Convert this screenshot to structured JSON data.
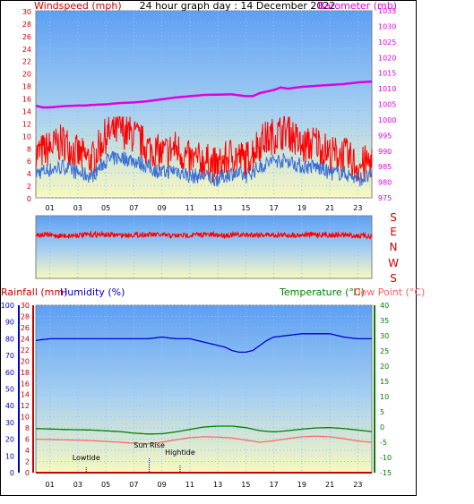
{
  "header": {
    "left_title": "Windspeed (mph)",
    "center_title": "24 hour graph day : 14 December 2022",
    "right_title": "Barometer (mb)"
  },
  "compass_labels": [
    "S",
    "E",
    "N",
    "W",
    "S"
  ],
  "bottom_header": {
    "rain_label": "Rainfall (mm)",
    "humidity_label": "Humidity (%)",
    "temp_label": "Temperature (°C)",
    "dew_label": "Dew Point (°C)"
  },
  "annotations": {
    "lowtide": "Lowtide",
    "sunrise": "Sun Rise",
    "hightide": "Hightide"
  },
  "colors": {
    "wind_gust": "#ff0000",
    "wind_avg": "#3a6fd6",
    "barometer": "#e000e0",
    "wind_dir": "#ff0000",
    "humidity": "#0000cc",
    "temperature": "#008000",
    "dewpoint": "#ff6060",
    "rain_axis": "#cc0000",
    "sky_top": "#5d9ff4",
    "sky_bottom": "#f8f8c0",
    "grid": "#8fc0ff"
  },
  "chart_data": [
    {
      "type": "line",
      "title": "24 hour graph day : 14 December 2022",
      "x_ticks": [
        "01",
        "03",
        "05",
        "07",
        "09",
        "11",
        "13",
        "15",
        "17",
        "19",
        "21",
        "23"
      ],
      "xlim": [
        0,
        24
      ],
      "y_left": {
        "label": "Windspeed (mph)",
        "range": [
          0,
          30
        ],
        "ticks": [
          "0",
          "2",
          "4",
          "6",
          "8",
          "10",
          "12",
          "14",
          "16",
          "18",
          "20",
          "22",
          "24",
          "26",
          "28",
          "30"
        ]
      },
      "y_right": {
        "label": "Barometer (mb)",
        "range": [
          975,
          1035
        ],
        "ticks": [
          "975",
          "980",
          "985",
          "990",
          "995",
          "1000",
          "1005",
          "1010",
          "1015",
          "1020",
          "1025",
          "1030",
          "1035"
        ]
      },
      "series": [
        {
          "name": "Barometer (mb)",
          "axis": "right",
          "x": [
            0,
            0.5,
            1,
            1.5,
            2,
            2.5,
            3,
            3.5,
            4,
            5,
            6,
            7,
            8,
            9,
            10,
            11,
            12,
            13,
            14,
            15,
            15.5,
            16,
            17,
            17.5,
            18,
            19,
            20,
            21,
            22,
            23,
            24
          ],
          "values": [
            1004.5,
            1004,
            1004,
            1004.2,
            1004.4,
            1004.5,
            1004.6,
            1004.6,
            1004.8,
            1005,
            1005.4,
            1005.6,
            1006,
            1006.6,
            1007.2,
            1007.6,
            1008,
            1008.1,
            1008.2,
            1007.6,
            1007.6,
            1008.6,
            1009.6,
            1010.4,
            1010,
            1010.6,
            1010.9,
            1011.2,
            1011.5,
            1012,
            1012.3
          ]
        },
        {
          "name": "Wind gust",
          "axis": "left",
          "x": [
            0,
            1,
            2,
            3,
            4,
            5,
            6,
            7,
            8,
            9,
            10,
            11,
            12,
            13,
            14,
            15,
            16,
            17,
            18,
            19,
            20,
            21,
            22,
            23,
            24
          ],
          "values": [
            7,
            8,
            9,
            7,
            6,
            10,
            11,
            10,
            8,
            7,
            8,
            6,
            6,
            5,
            7,
            6,
            9,
            10,
            11,
            8,
            9,
            7,
            7,
            5,
            6
          ]
        },
        {
          "name": "Wind average",
          "axis": "left",
          "x": [
            0,
            1,
            2,
            3,
            4,
            5,
            6,
            7,
            8,
            9,
            10,
            11,
            12,
            13,
            14,
            15,
            16,
            17,
            18,
            19,
            20,
            21,
            22,
            23,
            24
          ],
          "values": [
            4,
            4.5,
            5,
            4,
            3.5,
            6,
            6.5,
            6,
            5,
            4,
            4.5,
            3.5,
            3.5,
            3,
            4,
            3.5,
            5,
            6,
            6,
            5,
            5,
            4,
            4,
            3,
            3.5
          ]
        }
      ]
    },
    {
      "type": "line",
      "title": "",
      "y_labels_right": [
        "S",
        "E",
        "N",
        "W",
        "S"
      ],
      "series": [
        {
          "name": "Wind direction",
          "x": [
            0,
            2,
            4,
            6,
            8,
            10,
            12,
            14,
            16,
            18,
            20,
            22,
            24
          ],
          "values": [
            0.3,
            0.32,
            0.3,
            0.31,
            0.3,
            0.32,
            0.3,
            0.31,
            0.3,
            0.31,
            0.3,
            0.31,
            0.33
          ]
        }
      ]
    },
    {
      "type": "line",
      "title": "",
      "x_ticks": [
        "01",
        "03",
        "05",
        "07",
        "09",
        "11",
        "13",
        "15",
        "17",
        "19",
        "21",
        "23"
      ],
      "xlim": [
        0,
        24
      ],
      "y_humidity": {
        "label": "Humidity (%)",
        "range": [
          0,
          100
        ],
        "ticks": [
          "0",
          "10",
          "20",
          "30",
          "40",
          "50",
          "60",
          "70",
          "80",
          "90",
          "100"
        ]
      },
      "y_rain": {
        "label": "Rainfall (mm)",
        "range": [
          0,
          30
        ],
        "ticks": [
          "0",
          "2",
          "4",
          "6",
          "8",
          "10",
          "12",
          "14",
          "16",
          "18",
          "20",
          "22",
          "24",
          "26",
          "28",
          "30"
        ]
      },
      "y_temp": {
        "label": "Temperature (°C)",
        "range": [
          -15,
          40
        ],
        "ticks": [
          "-15",
          "-10",
          "-5",
          "0",
          "5",
          "10",
          "15",
          "20",
          "25",
          "30",
          "35",
          "40"
        ]
      },
      "series": [
        {
          "name": "Humidity (%)",
          "x": [
            0,
            1,
            2,
            3,
            4,
            5,
            6,
            7,
            8,
            9,
            10,
            11,
            12,
            13,
            13.5,
            14,
            14.5,
            15,
            15.5,
            16,
            16.5,
            17,
            18,
            19,
            20,
            21,
            22,
            23,
            24
          ],
          "values": [
            79,
            80,
            80,
            80,
            80,
            80,
            80,
            80,
            80,
            81,
            80,
            80,
            78,
            76,
            75,
            73,
            72,
            72,
            73,
            76,
            79,
            81,
            82,
            83,
            83,
            83,
            81,
            80,
            80
          ]
        },
        {
          "name": "Temperature (°C)",
          "x": [
            0,
            2,
            4,
            6,
            7,
            8,
            9,
            10,
            11,
            12,
            13,
            14,
            15,
            16,
            17,
            18,
            19,
            20,
            21,
            22,
            23,
            24
          ],
          "values": [
            -0.5,
            -0.8,
            -1,
            -1.5,
            -2,
            -2.3,
            -2.2,
            -1.6,
            -0.8,
            0,
            0.3,
            0.3,
            -0.2,
            -1.2,
            -1.6,
            -1.2,
            -0.7,
            -0.3,
            -0.2,
            -0.5,
            -1,
            -1.5
          ]
        },
        {
          "name": "Dew Point (°C)",
          "x": [
            0,
            2,
            4,
            6,
            7,
            8,
            9,
            10,
            11,
            12,
            13,
            14,
            15,
            16,
            17,
            18,
            19,
            20,
            21,
            22,
            23,
            24
          ],
          "values": [
            -4,
            -4.2,
            -4.5,
            -5,
            -5.3,
            -5.5,
            -5,
            -4.2,
            -3.5,
            -3.2,
            -3.3,
            -3.6,
            -4.3,
            -5,
            -4.5,
            -3.8,
            -3.2,
            -3,
            -3.2,
            -3.8,
            -4.6,
            -5
          ]
        },
        {
          "name": "Rainfall (mm)",
          "x": [
            0,
            24
          ],
          "values": [
            0,
            0
          ]
        }
      ],
      "markers": [
        {
          "label": "Lowtide",
          "x": 3.6
        },
        {
          "label": "Sun Rise",
          "x": 8.1
        },
        {
          "label": "Hightide",
          "x": 10.3
        }
      ]
    }
  ]
}
